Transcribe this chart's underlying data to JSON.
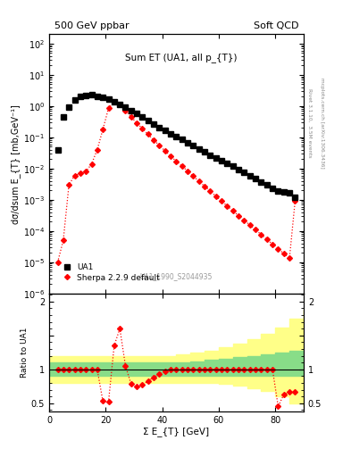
{
  "title_left": "500 GeV ppbar",
  "title_right": "Soft QCD",
  "plot_title": "Sum ET (UA1, all p_{T})",
  "ylabel_main": "dσ/dsum E_{T} [mb,GeV⁻¹]",
  "xlabel": "Σ E_{T} [GeV]",
  "ylabel_ratio": "Ratio to UA1",
  "right_label": "Rivet 3.1.10,  3.5M events",
  "right_label2": "mcplots.cern.ch [arXiv:1306.3436]",
  "ref_label": "UA1_1990_S2044935",
  "ua1_x": [
    3,
    5,
    7,
    9,
    11,
    13,
    15,
    17,
    19,
    21,
    23,
    25,
    27,
    29,
    31,
    33,
    35,
    37,
    39,
    41,
    43,
    45,
    47,
    49,
    51,
    53,
    55,
    57,
    59,
    61,
    63,
    65,
    67,
    69,
    71,
    73,
    75,
    77,
    79,
    81,
    83,
    85,
    87
  ],
  "ua1_y": [
    0.04,
    0.45,
    0.95,
    1.6,
    2.1,
    2.25,
    2.3,
    2.1,
    1.9,
    1.65,
    1.35,
    1.1,
    0.9,
    0.72,
    0.58,
    0.45,
    0.35,
    0.27,
    0.21,
    0.165,
    0.13,
    0.105,
    0.085,
    0.068,
    0.054,
    0.043,
    0.034,
    0.027,
    0.022,
    0.018,
    0.015,
    0.012,
    0.0095,
    0.0075,
    0.006,
    0.0048,
    0.0038,
    0.003,
    0.0024,
    0.0019,
    0.0018,
    0.0017,
    0.0012
  ],
  "sherpa_x": [
    3,
    5,
    7,
    9,
    11,
    13,
    15,
    17,
    19,
    21,
    23,
    25,
    27,
    29,
    31,
    33,
    35,
    37,
    39,
    41,
    43,
    45,
    47,
    49,
    51,
    53,
    55,
    57,
    59,
    61,
    63,
    65,
    67,
    69,
    71,
    73,
    75,
    77,
    79,
    81,
    83,
    85,
    87
  ],
  "sherpa_y": [
    1e-05,
    5e-05,
    0.003,
    0.006,
    0.007,
    0.008,
    0.014,
    0.04,
    0.18,
    0.85,
    1.35,
    1.15,
    0.72,
    0.45,
    0.29,
    0.19,
    0.125,
    0.082,
    0.055,
    0.037,
    0.025,
    0.017,
    0.012,
    0.0083,
    0.0057,
    0.0039,
    0.0027,
    0.0019,
    0.0013,
    0.0009,
    0.00063,
    0.00044,
    0.00031,
    0.00022,
    0.000155,
    0.00011,
    7.7e-05,
    5.4e-05,
    3.8e-05,
    2.7e-05,
    1.9e-05,
    1.35e-05,
    0.00095
  ],
  "ratio_sherpa_x": [
    3,
    5,
    7,
    9,
    11,
    13,
    15,
    17,
    19,
    21,
    23,
    25,
    27,
    29,
    31,
    33,
    35,
    37,
    39,
    41,
    43,
    45,
    47,
    49,
    51,
    53,
    55,
    57,
    59,
    61,
    63,
    65,
    67,
    69,
    71,
    73,
    75,
    77,
    79,
    81,
    83,
    85,
    87
  ],
  "ratio_sherpa_y": [
    1.0,
    1.0,
    1.0,
    1.0,
    1.0,
    1.0,
    1.0,
    1.0,
    0.53,
    0.52,
    1.35,
    1.6,
    1.05,
    0.78,
    0.74,
    0.77,
    0.83,
    0.88,
    0.93,
    0.97,
    1.0,
    1.0,
    1.0,
    1.0,
    1.0,
    1.0,
    1.0,
    1.0,
    1.0,
    1.0,
    1.0,
    1.0,
    1.0,
    1.0,
    1.0,
    1.0,
    1.0,
    1.0,
    1.0,
    0.45,
    0.63,
    0.67,
    0.67
  ],
  "band_x": [
    0,
    5,
    10,
    15,
    20,
    25,
    30,
    35,
    40,
    45,
    50,
    55,
    60,
    65,
    70,
    75,
    80,
    85,
    90
  ],
  "band_green_lo": [
    0.9,
    0.9,
    0.9,
    0.9,
    0.9,
    0.9,
    0.9,
    0.9,
    0.9,
    0.9,
    0.9,
    0.9,
    0.9,
    0.9,
    0.9,
    0.9,
    0.9,
    0.9,
    0.9
  ],
  "band_green_hi": [
    1.1,
    1.1,
    1.1,
    1.1,
    1.1,
    1.1,
    1.1,
    1.1,
    1.1,
    1.1,
    1.12,
    1.14,
    1.16,
    1.18,
    1.2,
    1.22,
    1.25,
    1.28,
    1.3
  ],
  "band_yellow_lo": [
    0.8,
    0.8,
    0.8,
    0.8,
    0.8,
    0.8,
    0.8,
    0.8,
    0.8,
    0.8,
    0.8,
    0.8,
    0.78,
    0.76,
    0.72,
    0.68,
    0.6,
    0.5,
    0.45
  ],
  "band_yellow_hi": [
    1.2,
    1.2,
    1.2,
    1.2,
    1.2,
    1.2,
    1.2,
    1.2,
    1.2,
    1.22,
    1.25,
    1.28,
    1.32,
    1.38,
    1.44,
    1.52,
    1.62,
    1.75,
    1.88
  ],
  "ylim_main": [
    1e-06,
    200
  ],
  "xlim": [
    0,
    90
  ],
  "ylim_ratio": [
    0.38,
    2.12
  ],
  "ratio_yticks": [
    0.5,
    1.0,
    1.5,
    2.0
  ],
  "ratio_yticklabels": [
    "0.5",
    "1",
    "",
    "2"
  ]
}
